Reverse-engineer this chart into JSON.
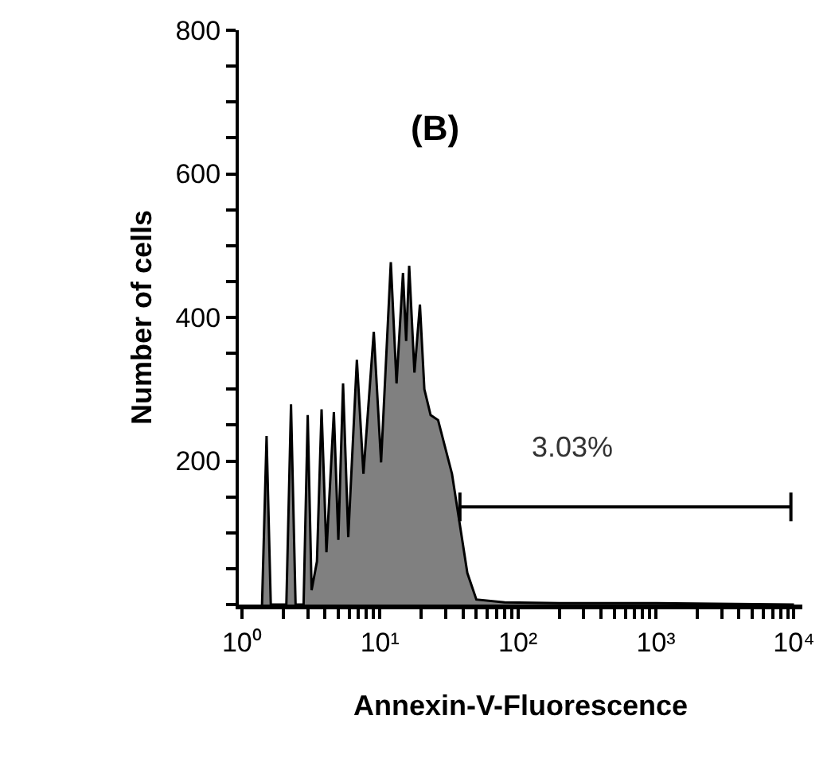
{
  "chart_data": {
    "type": "area",
    "xlabel": "Annexin-V-Fluorescence",
    "ylabel": "Number of cells",
    "log": "x",
    "xlim": [
      0.95,
      11500
    ],
    "ylim": [
      0,
      800
    ],
    "xticks": [
      {
        "value": 1,
        "label": "10⁰"
      },
      {
        "value": 2,
        "label": null
      },
      {
        "value": 3,
        "label": null
      },
      {
        "value": 4,
        "label": null
      },
      {
        "value": 5,
        "label": null
      },
      {
        "value": 6,
        "label": null
      },
      {
        "value": 7,
        "label": null
      },
      {
        "value": 8,
        "label": null
      },
      {
        "value": 9,
        "label": null
      },
      {
        "value": 10,
        "label": "10¹"
      },
      {
        "value": 20,
        "label": null
      },
      {
        "value": 30,
        "label": null
      },
      {
        "value": 40,
        "label": null
      },
      {
        "value": 50,
        "label": null
      },
      {
        "value": 60,
        "label": null
      },
      {
        "value": 70,
        "label": null
      },
      {
        "value": 80,
        "label": null
      },
      {
        "value": 90,
        "label": null
      },
      {
        "value": 100,
        "label": "10²"
      },
      {
        "value": 200,
        "label": null
      },
      {
        "value": 300,
        "label": null
      },
      {
        "value": 400,
        "label": null
      },
      {
        "value": 500,
        "label": null
      },
      {
        "value": 600,
        "label": null
      },
      {
        "value": 700,
        "label": null
      },
      {
        "value": 800,
        "label": null
      },
      {
        "value": 900,
        "label": null
      },
      {
        "value": 1000,
        "label": "10³"
      },
      {
        "value": 2000,
        "label": null
      },
      {
        "value": 3000,
        "label": null
      },
      {
        "value": 4000,
        "label": null
      },
      {
        "value": 5000,
        "label": null
      },
      {
        "value": 6000,
        "label": null
      },
      {
        "value": 7000,
        "label": null
      },
      {
        "value": 8000,
        "label": null
      },
      {
        "value": 9000,
        "label": null
      },
      {
        "value": 10000,
        "label": "10⁴"
      }
    ],
    "yticks": [
      {
        "value": 0,
        "label": null
      },
      {
        "value": 50,
        "label": null
      },
      {
        "value": 100,
        "label": null
      },
      {
        "value": 150,
        "label": null
      },
      200,
      {
        "value": 250,
        "label": null
      },
      {
        "value": 300,
        "label": null
      },
      {
        "value": 350,
        "label": null
      },
      400,
      {
        "value": 450,
        "label": null
      },
      {
        "value": 500,
        "label": null
      },
      {
        "value": 550,
        "label": null
      },
      600,
      {
        "value": 650,
        "label": null
      },
      {
        "value": 700,
        "label": null
      },
      {
        "value": 750,
        "label": null
      },
      800
    ],
    "series": [
      {
        "color": "#808080",
        "x": [
          1.4,
          1.51,
          1.62,
          2.1,
          2.27,
          2.45,
          2.8,
          3.0,
          3.2,
          3.5,
          3.78,
          4.1,
          4.64,
          5.0,
          5.41,
          5.9,
          6.81,
          7.6,
          9.03,
          10.2,
          12,
          13.2,
          14.7,
          15.5,
          16.3,
          17.8,
          19.5,
          21,
          23.3,
          26.4,
          33.3,
          43,
          50,
          80,
          200,
          1000,
          10000
        ],
        "values": [
          0,
          235,
          0,
          0,
          279,
          0,
          0,
          264,
          20,
          60,
          272,
          73,
          268,
          90,
          308,
          94,
          341,
          182,
          380,
          198,
          477,
          308,
          462,
          367,
          472,
          323,
          418,
          300,
          264,
          257,
          182,
          44,
          7,
          3,
          2,
          2,
          0
        ]
      },
      {
        "type": "line",
        "color": "#000000",
        "x": [
          38,
          9500
        ],
        "values": [
          136,
          136
        ],
        "errors": [
          20,
          20
        ]
      }
    ],
    "annotations": [
      "(B)",
      "3.03%"
    ]
  }
}
